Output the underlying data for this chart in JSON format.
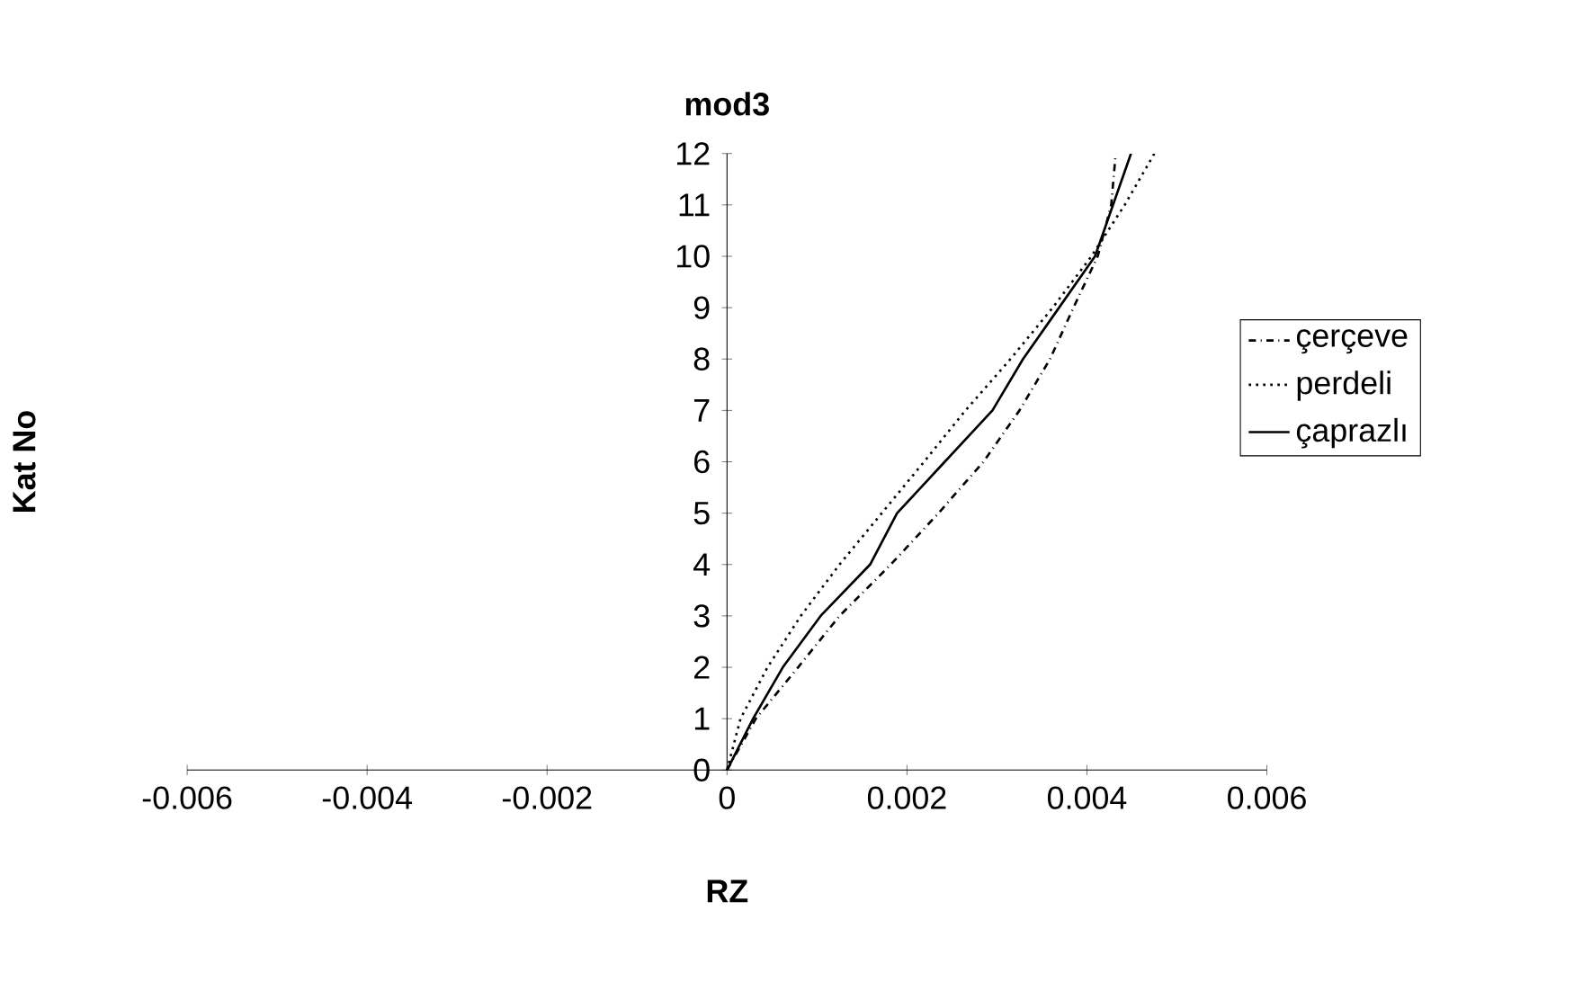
{
  "chart_data": {
    "type": "line",
    "title": "mod3",
    "xlabel": "RZ",
    "ylabel": "Kat No",
    "xlim": [
      -0.006,
      0.006
    ],
    "xticks": [
      -0.006,
      -0.004,
      -0.002,
      0,
      0.002,
      0.004,
      0.006
    ],
    "ylim": [
      0,
      12
    ],
    "yticks": [
      0,
      1,
      2,
      3,
      4,
      5,
      6,
      7,
      8,
      9,
      10,
      11,
      12
    ],
    "grid": false,
    "legend": "right",
    "marker": "none",
    "series": [
      {
        "name": "çerçeve",
        "color": "#000000",
        "line_style": "dashdot",
        "x": [
          0,
          0.00032,
          0.00079,
          0.00125,
          0.00182,
          0.00235,
          0.00285,
          0.00325,
          0.00359,
          0.00385,
          0.00412,
          0.00427,
          0.00432
        ],
        "values": [
          0,
          1,
          2,
          3,
          4,
          5,
          6,
          7,
          8,
          9,
          10,
          11,
          12
        ]
      },
      {
        "name": "perdeli",
        "color": "#000000",
        "line_style": "dotted",
        "x": [
          0,
          0.00015,
          0.00045,
          0.00082,
          0.00125,
          0.00172,
          0.00219,
          0.00265,
          0.00315,
          0.00362,
          0.00405,
          0.00442,
          0.00475
        ],
        "values": [
          0,
          1,
          2,
          3,
          4,
          5,
          6,
          7,
          8,
          9,
          10,
          11,
          12
        ]
      },
      {
        "name": "çaprazlı",
        "color": "#000000",
        "line_style": "solid",
        "x": [
          0,
          0.00029,
          0.00062,
          0.00104,
          0.00159,
          0.00189,
          0.00242,
          0.00295,
          0.00329,
          0.00369,
          0.00409,
          0.00429,
          0.00449
        ],
        "values": [
          0,
          1,
          2,
          3,
          4,
          5,
          6,
          7,
          8,
          9,
          10,
          11,
          12
        ]
      }
    ]
  }
}
